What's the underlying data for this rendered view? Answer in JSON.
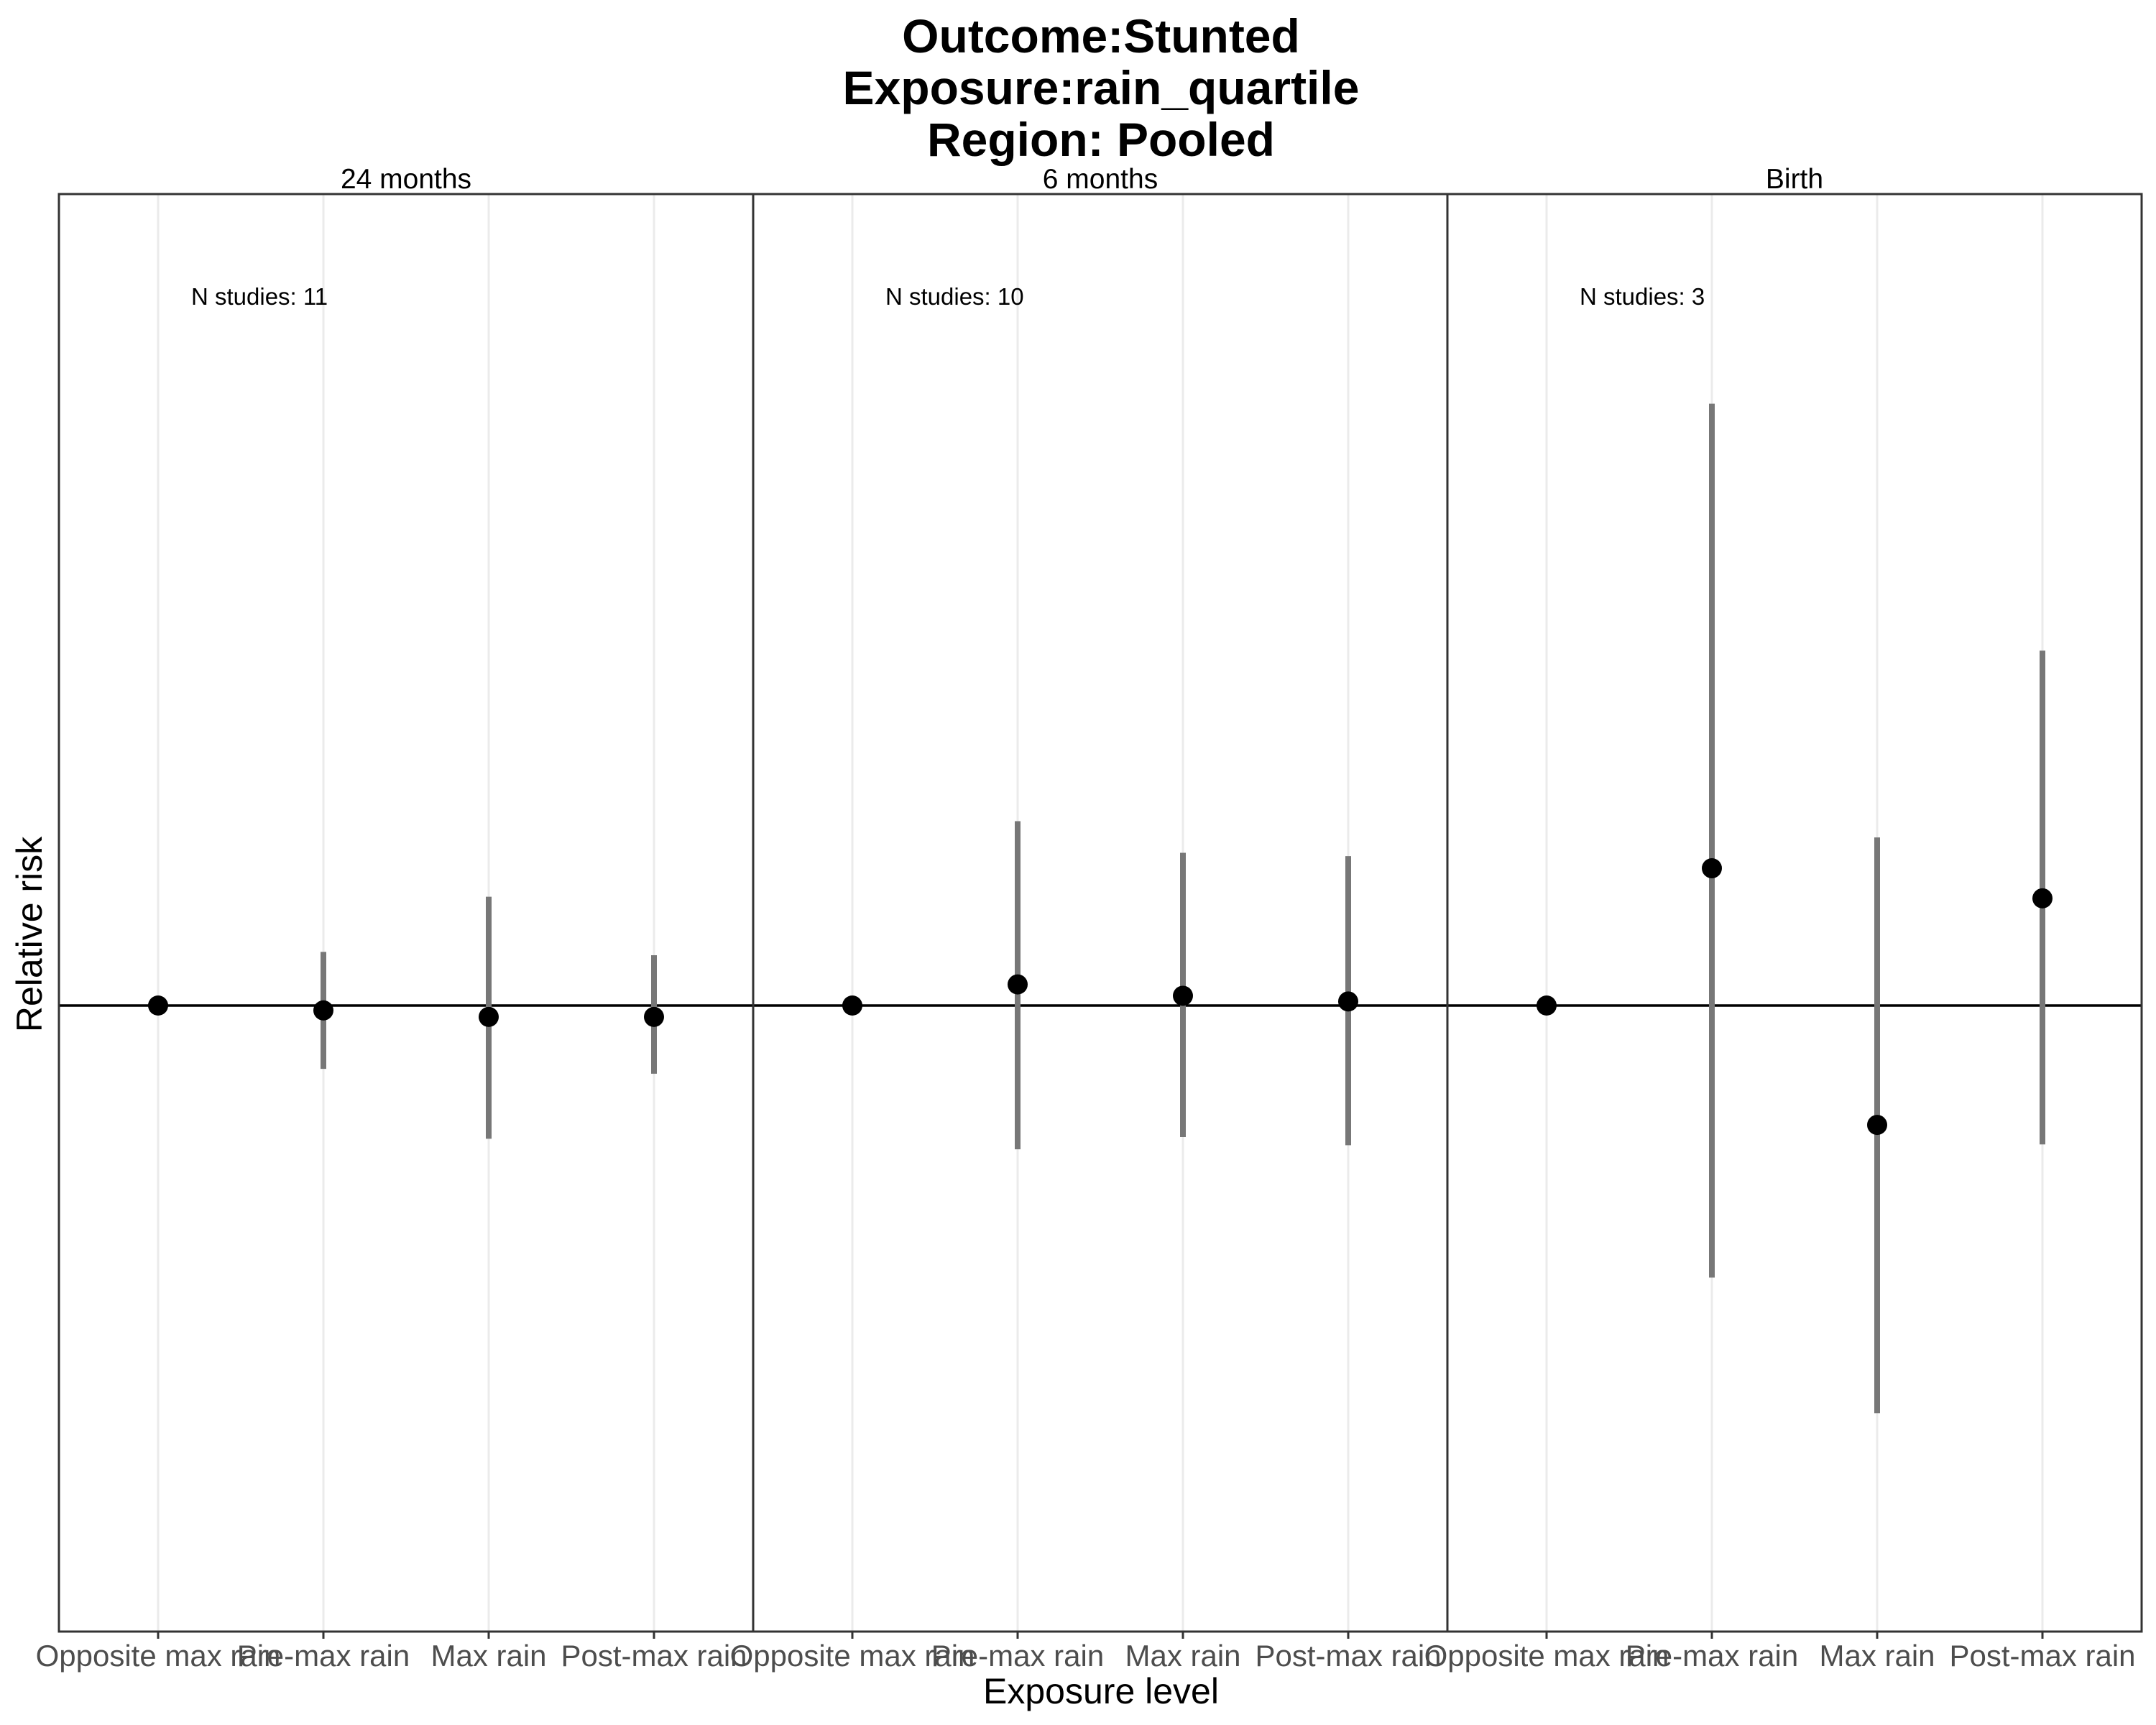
{
  "chart_data": {
    "type": "scatter",
    "subtype": "point-range (faceted)",
    "title": [
      "Outcome:Stunted",
      "Exposure:rain_quartile",
      "Region: Pooled"
    ],
    "xlabel": "Exposure level",
    "ylabel": "Relative risk",
    "categories": [
      "Opposite max rain",
      "Pre-max rain",
      "Max rain",
      "Post-max rain"
    ],
    "reference_line": 1.0,
    "ylim": [
      0.5,
      1.8
    ],
    "grid": "vertical major only",
    "facets": [
      {
        "label": "24 months",
        "annotation": "N studies: 11",
        "points": [
          {
            "est": 1.0,
            "lo": 1.0,
            "hi": 1.0
          },
          {
            "est": 0.994,
            "lo": 0.922,
            "hi": 1.066
          },
          {
            "est": 0.986,
            "lo": 0.836,
            "hi": 1.134
          },
          {
            "est": 0.986,
            "lo": 0.916,
            "hi": 1.062
          }
        ]
      },
      {
        "label": "6 months",
        "annotation": "N studies: 10",
        "points": [
          {
            "est": 1.0,
            "lo": 1.0,
            "hi": 1.0
          },
          {
            "est": 1.026,
            "lo": 0.823,
            "hi": 1.227
          },
          {
            "est": 1.012,
            "lo": 0.838,
            "hi": 1.188
          },
          {
            "est": 1.005,
            "lo": 0.828,
            "hi": 1.184
          }
        ]
      },
      {
        "label": "Birth",
        "annotation": "N studies: 3",
        "points": [
          {
            "est": 1.0,
            "lo": 1.0,
            "hi": 1.0
          },
          {
            "est": 1.169,
            "lo": 0.665,
            "hi": 1.741
          },
          {
            "est": 0.853,
            "lo": 0.498,
            "hi": 1.207
          },
          {
            "est": 1.132,
            "lo": 0.829,
            "hi": 1.437
          }
        ]
      }
    ],
    "colors": {
      "point": "#000000",
      "errorbar": "#777777",
      "refline": "#000000",
      "grid": "#ebebeb",
      "panel_border": "#333333"
    }
  }
}
